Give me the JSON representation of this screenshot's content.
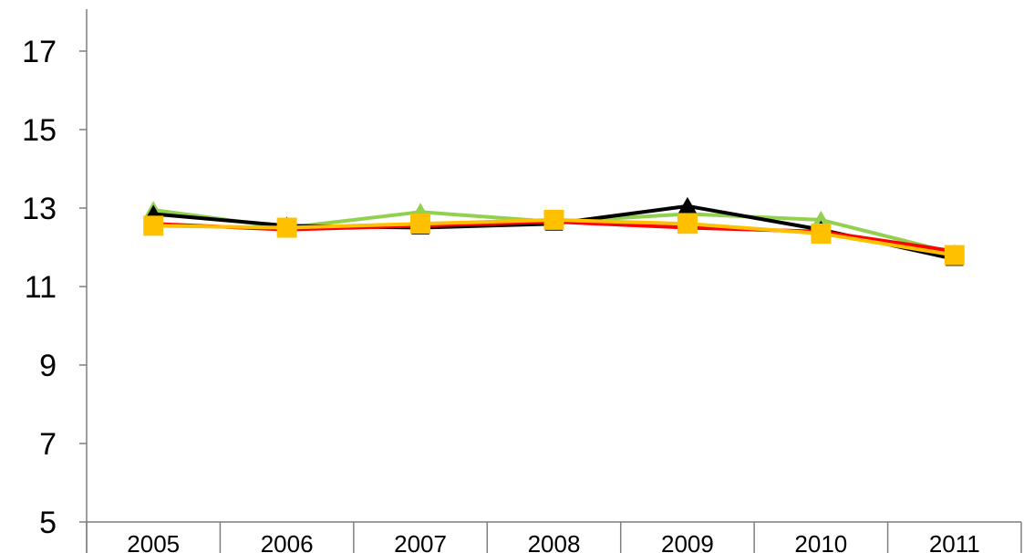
{
  "chart_data": {
    "type": "line",
    "title": "",
    "xlabel": "",
    "ylabel": "",
    "ylim": [
      5,
      17.8
    ],
    "yticks": [
      5,
      7,
      9,
      11,
      13,
      15,
      17
    ],
    "categories": [
      "2005",
      "2006",
      "2007",
      "2008",
      "2009",
      "2010",
      "2011"
    ],
    "grid": false,
    "legend": "none",
    "series": [
      {
        "color": "#92d050",
        "marker": "triangle",
        "values": [
          12.95,
          12.5,
          12.9,
          12.65,
          12.85,
          12.7,
          11.85
        ]
      },
      {
        "color": "#000000",
        "marker": "triangle",
        "values": [
          12.85,
          12.55,
          12.5,
          12.6,
          13.05,
          12.45,
          11.7
        ]
      },
      {
        "color": "#ff0000",
        "marker": "dash",
        "values": [
          12.6,
          12.45,
          12.55,
          12.65,
          12.5,
          12.4,
          11.9
        ]
      },
      {
        "color": "#ffc000",
        "marker": "square",
        "values": [
          12.55,
          12.5,
          12.6,
          12.7,
          12.6,
          12.35,
          11.8
        ]
      }
    ]
  }
}
